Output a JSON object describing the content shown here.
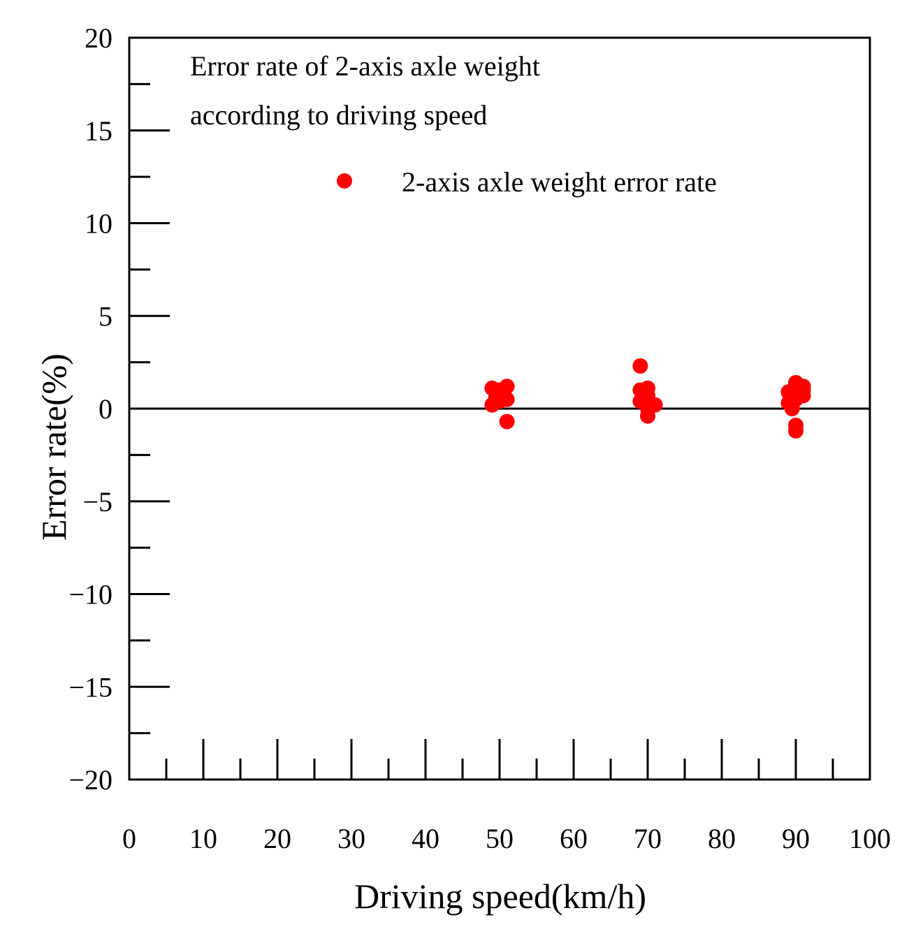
{
  "chart_data": {
    "type": "scatter",
    "title": "",
    "annotation": [
      "Error rate of 2-axis axle weight",
      "according to driving speed"
    ],
    "xlabel": "Driving speed(km/h)",
    "ylabel": "Error rate(%)",
    "xlim": [
      0,
      100
    ],
    "ylim": [
      -20,
      20
    ],
    "xticks": [
      0,
      10,
      20,
      30,
      40,
      50,
      60,
      70,
      80,
      90,
      100
    ],
    "xtick_labels": [
      "0",
      "10",
      "20",
      "30",
      "40",
      "50",
      "60",
      "70",
      "80",
      "90",
      "100"
    ],
    "yticks": [
      -20,
      -15,
      -10,
      -5,
      0,
      5,
      10,
      15,
      20
    ],
    "ytick_labels": [
      "−20",
      "−15",
      "−10",
      "−5",
      "0",
      "5",
      "10",
      "15",
      "20"
    ],
    "grid": false,
    "reference_line_y": 0,
    "legend": {
      "position": "top-right",
      "entries": [
        "2-axis axle weight error rate"
      ]
    },
    "series": [
      {
        "name": "2-axis axle weight error rate",
        "color": "#ff0000",
        "points": [
          {
            "x": 49,
            "y": 1.1
          },
          {
            "x": 49,
            "y": 0.2
          },
          {
            "x": 49.5,
            "y": 0.6
          },
          {
            "x": 50,
            "y": 1.0
          },
          {
            "x": 50,
            "y": 0.4
          },
          {
            "x": 50.5,
            "y": 0.8
          },
          {
            "x": 51,
            "y": 1.2
          },
          {
            "x": 51,
            "y": 0.5
          },
          {
            "x": 51,
            "y": -0.7
          },
          {
            "x": 69,
            "y": 2.3
          },
          {
            "x": 69,
            "y": 1.0
          },
          {
            "x": 69,
            "y": 0.4
          },
          {
            "x": 69.5,
            "y": 0.8
          },
          {
            "x": 70,
            "y": 1.1
          },
          {
            "x": 70,
            "y": 0.7
          },
          {
            "x": 70,
            "y": 0.0
          },
          {
            "x": 70,
            "y": -0.4
          },
          {
            "x": 71,
            "y": 0.2
          },
          {
            "x": 89,
            "y": 0.9
          },
          {
            "x": 89,
            "y": 0.3
          },
          {
            "x": 89.5,
            "y": 0.0
          },
          {
            "x": 90,
            "y": 1.4
          },
          {
            "x": 90,
            "y": 1.1
          },
          {
            "x": 90,
            "y": 0.5
          },
          {
            "x": 90,
            "y": -0.9
          },
          {
            "x": 90,
            "y": -1.2
          },
          {
            "x": 90.5,
            "y": 0.8
          },
          {
            "x": 91,
            "y": 1.2
          },
          {
            "x": 91,
            "y": 0.7
          },
          {
            "x": 91,
            "y": 1.0
          }
        ]
      }
    ]
  }
}
